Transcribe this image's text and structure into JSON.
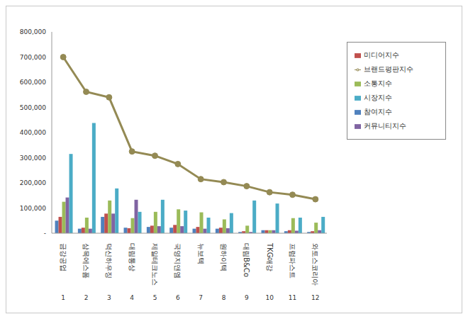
{
  "chart_data": {
    "type": "bar",
    "categories": [
      "금강공업",
      "삼목에스폼",
      "덕신하우징",
      "대림통상",
      "제일테크노스",
      "국영지앤엠",
      "뉴보텍",
      "원하이텍",
      "대림B&Co",
      "TKG애강",
      "프럼파스트",
      "와토스코리아"
    ],
    "category_numbers": [
      1,
      2,
      3,
      4,
      5,
      6,
      7,
      8,
      9,
      10,
      11,
      12
    ],
    "ylim": [
      0,
      800000
    ],
    "yticks": [
      {
        "value": 0,
        "label": "-"
      },
      {
        "value": 100000,
        "label": "100,000"
      },
      {
        "value": 200000,
        "label": "200,000"
      },
      {
        "value": 300000,
        "label": "300,000"
      },
      {
        "value": 400000,
        "label": "400,000"
      },
      {
        "value": 500000,
        "label": "500,000"
      },
      {
        "value": 600000,
        "label": "600,000"
      },
      {
        "value": 700000,
        "label": "700,000"
      },
      {
        "value": 800000,
        "label": "800,000"
      }
    ],
    "grid": false,
    "legend": "upper right",
    "series": [
      {
        "name": "참여지수",
        "color": "#4f81bd",
        "values": [
          50000,
          18000,
          65000,
          22000,
          25000,
          22000,
          18000,
          18000,
          5000,
          12000,
          8000,
          5000
        ]
      },
      {
        "name": "미디어지수",
        "color": "#c0504d",
        "values": [
          65000,
          22000,
          78000,
          20000,
          30000,
          33000,
          25000,
          22000,
          8000,
          12000,
          12000,
          8000
        ]
      },
      {
        "name": "소통지수",
        "color": "#9bbb59",
        "values": [
          125000,
          62000,
          130000,
          60000,
          85000,
          95000,
          83000,
          55000,
          30000,
          12000,
          60000,
          42000
        ]
      },
      {
        "name": "커뮤니티지수",
        "color": "#8064a2",
        "values": [
          142000,
          18000,
          78000,
          133000,
          28000,
          28000,
          18000,
          20000,
          5000,
          12000,
          10000,
          12000
        ]
      },
      {
        "name": "시장지수",
        "color": "#4bacc6",
        "values": [
          315000,
          438000,
          178000,
          85000,
          133000,
          90000,
          62000,
          80000,
          130000,
          118000,
          62000,
          65000
        ]
      },
      {
        "name": "브랜드평판지수",
        "color": "#948a54",
        "type": "line",
        "marker": "circle",
        "values": [
          700000,
          562000,
          540000,
          325000,
          308000,
          275000,
          215000,
          203000,
          187000,
          163000,
          153000,
          135000
        ]
      }
    ]
  }
}
